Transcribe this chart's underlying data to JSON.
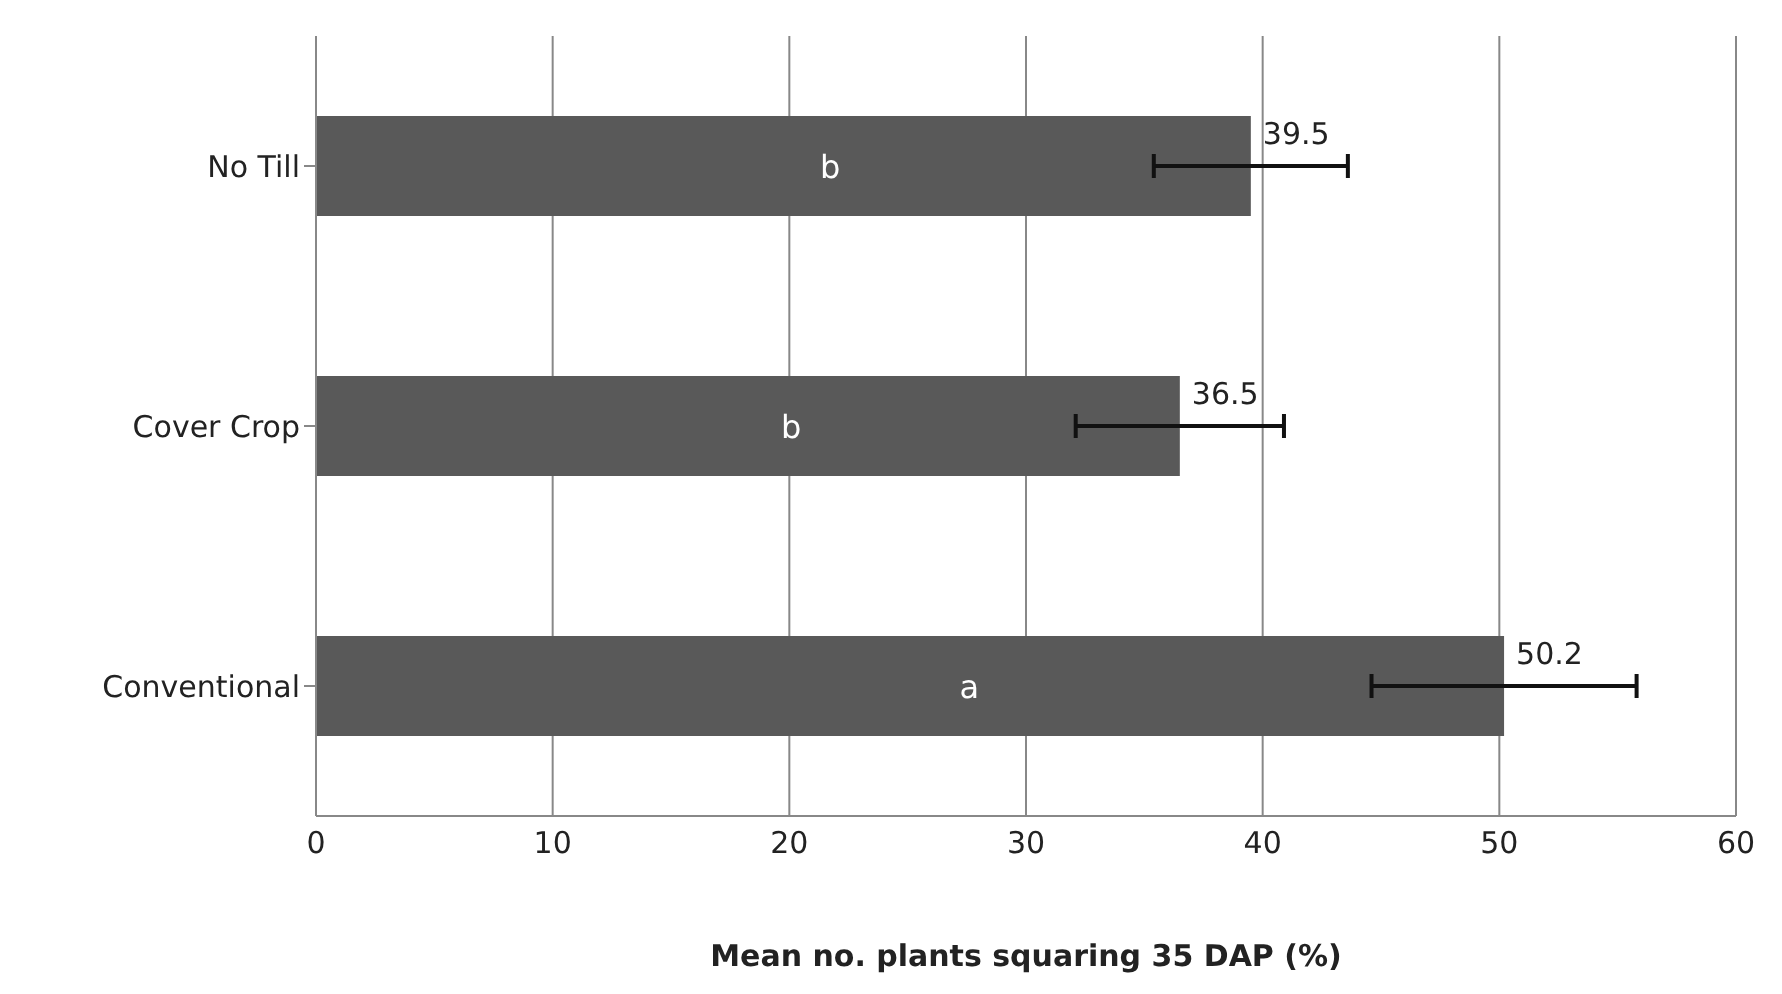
{
  "chart_data": {
    "type": "bar",
    "orientation": "horizontal",
    "xlabel": "Mean no. plants squaring 35 DAP (%)",
    "categories": [
      "No Till",
      "Cover Crop",
      "Conventional"
    ],
    "values": [
      39.5,
      36.5,
      50.2
    ],
    "errors": [
      4.1,
      4.4,
      5.6
    ],
    "color": "#595959",
    "xlim": [
      0,
      60
    ],
    "xticks": [
      0,
      10,
      20,
      30,
      40,
      50,
      60
    ],
    "grid": "x",
    "data_labels": true,
    "annotations": [
      "b",
      "b",
      "a"
    ]
  }
}
